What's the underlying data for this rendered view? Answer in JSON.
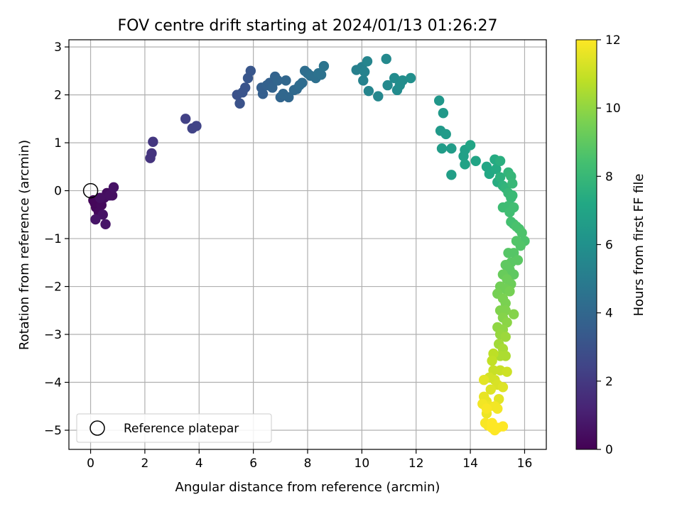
{
  "chart_data": {
    "type": "scatter",
    "title": "FOV centre drift starting at 2024/01/13 01:26:27",
    "xlabel": "Angular distance from reference (arcmin)",
    "ylabel": "Rotation from reference (arcmin)",
    "xlim": [
      -0.8,
      16.8
    ],
    "ylim": [
      -5.4,
      3.15
    ],
    "x_ticks": [
      0,
      2,
      4,
      6,
      8,
      10,
      12,
      14,
      16
    ],
    "y_ticks": [
      -5,
      -4,
      -3,
      -2,
      -1,
      0,
      1,
      2,
      3
    ],
    "x_tick_labels": [
      "0",
      "2",
      "4",
      "6",
      "8",
      "10",
      "12",
      "14",
      "16"
    ],
    "y_tick_labels": [
      "−5",
      "−4",
      "−3",
      "−2",
      "−1",
      "0",
      "1",
      "2",
      "3"
    ],
    "grid": true,
    "legend": {
      "position": "lower-left",
      "entries": [
        "Reference platepar"
      ]
    },
    "colorbar": {
      "label": "Hours from first FF file",
      "range": [
        0,
        12
      ],
      "ticks": [
        0,
        2,
        4,
        6,
        8,
        10,
        12
      ],
      "tick_labels": [
        "0",
        "2",
        "4",
        "6",
        "8",
        "10",
        "12"
      ],
      "colormap": "viridis"
    },
    "reference_point": {
      "x": 0,
      "y": 0,
      "name": "Reference platepar"
    },
    "points": [
      [
        0.1,
        -0.2,
        0.1
      ],
      [
        0.2,
        -0.35,
        0.2
      ],
      [
        0.15,
        -0.25,
        0.2
      ],
      [
        0.3,
        -0.45,
        0.3
      ],
      [
        0.4,
        -0.3,
        0.3
      ],
      [
        0.5,
        -0.15,
        0.4
      ],
      [
        0.6,
        -0.05,
        0.4
      ],
      [
        0.7,
        -0.1,
        0.5
      ],
      [
        0.8,
        -0.1,
        0.5
      ],
      [
        0.85,
        0.07,
        0.6
      ],
      [
        0.45,
        -0.5,
        0.6
      ],
      [
        0.55,
        -0.7,
        0.7
      ],
      [
        0.18,
        -0.6,
        0.7
      ],
      [
        0.35,
        -0.15,
        0.5
      ],
      [
        2.2,
        0.68,
        1.8
      ],
      [
        2.25,
        0.78,
        1.8
      ],
      [
        2.3,
        1.02,
        1.9
      ],
      [
        3.5,
        1.5,
        2.3
      ],
      [
        3.75,
        1.3,
        2.4
      ],
      [
        3.9,
        1.35,
        2.4
      ],
      [
        5.4,
        2.0,
        3.0
      ],
      [
        5.5,
        1.82,
        3.0
      ],
      [
        5.6,
        2.05,
        3.1
      ],
      [
        5.7,
        2.15,
        3.1
      ],
      [
        5.8,
        2.35,
        3.2
      ],
      [
        5.9,
        2.5,
        3.2
      ],
      [
        6.3,
        2.15,
        3.6
      ],
      [
        6.35,
        2.02,
        3.6
      ],
      [
        6.5,
        2.2,
        3.7
      ],
      [
        6.6,
        2.25,
        3.7
      ],
      [
        6.7,
        2.15,
        3.8
      ],
      [
        6.8,
        2.38,
        3.8
      ],
      [
        6.9,
        2.3,
        3.9
      ],
      [
        7.0,
        1.95,
        3.9
      ],
      [
        7.1,
        2.02,
        4.0
      ],
      [
        7.2,
        2.3,
        4.0
      ],
      [
        7.3,
        1.95,
        4.0
      ],
      [
        7.5,
        2.1,
        4.1
      ],
      [
        7.6,
        2.12,
        4.1
      ],
      [
        7.7,
        2.2,
        4.2
      ],
      [
        7.8,
        2.25,
        4.2
      ],
      [
        7.9,
        2.5,
        4.3
      ],
      [
        8.0,
        2.45,
        4.3
      ],
      [
        8.1,
        2.4,
        4.4
      ],
      [
        8.3,
        2.35,
        4.4
      ],
      [
        8.4,
        2.45,
        4.5
      ],
      [
        8.5,
        2.42,
        4.5
      ],
      [
        8.6,
        2.6,
        4.6
      ],
      [
        9.8,
        2.52,
        5.2
      ],
      [
        10.0,
        2.58,
        5.2
      ],
      [
        10.05,
        2.3,
        5.3
      ],
      [
        10.1,
        2.48,
        5.3
      ],
      [
        10.2,
        2.7,
        5.4
      ],
      [
        10.25,
        2.08,
        5.4
      ],
      [
        10.6,
        1.97,
        5.5
      ],
      [
        10.9,
        2.75,
        5.6
      ],
      [
        10.95,
        2.2,
        5.6
      ],
      [
        11.2,
        2.35,
        5.7
      ],
      [
        11.3,
        2.1,
        5.7
      ],
      [
        11.4,
        2.2,
        5.8
      ],
      [
        11.5,
        2.3,
        5.8
      ],
      [
        11.8,
        2.35,
        5.9
      ],
      [
        12.85,
        1.88,
        6.3
      ],
      [
        13.0,
        1.62,
        6.4
      ],
      [
        12.9,
        1.25,
        6.4
      ],
      [
        13.1,
        1.18,
        6.5
      ],
      [
        12.95,
        0.88,
        6.6
      ],
      [
        13.3,
        0.88,
        6.6
      ],
      [
        13.3,
        0.33,
        6.7
      ],
      [
        13.8,
        0.85,
        6.8
      ],
      [
        13.75,
        0.72,
        6.8
      ],
      [
        13.8,
        0.55,
        6.9
      ],
      [
        14.0,
        0.95,
        7.0
      ],
      [
        14.2,
        0.62,
        7.0
      ],
      [
        14.6,
        0.5,
        7.1
      ],
      [
        14.7,
        0.35,
        7.2
      ],
      [
        14.9,
        0.65,
        7.3
      ],
      [
        14.95,
        0.45,
        7.3
      ],
      [
        15.0,
        0.18,
        7.4
      ],
      [
        15.1,
        0.62,
        7.5
      ],
      [
        15.1,
        0.28,
        7.6
      ],
      [
        15.2,
        0.1,
        7.7
      ],
      [
        15.3,
        0.05,
        7.8
      ],
      [
        15.4,
        0.38,
        7.8
      ],
      [
        15.5,
        0.3,
        7.9
      ],
      [
        15.55,
        0.15,
        8.0
      ],
      [
        15.4,
        -0.05,
        8.0
      ],
      [
        15.5,
        -0.15,
        8.1
      ],
      [
        15.55,
        -0.1,
        8.1
      ],
      [
        15.2,
        -0.35,
        8.2
      ],
      [
        15.4,
        -0.32,
        8.2
      ],
      [
        15.45,
        -0.45,
        8.3
      ],
      [
        15.6,
        -0.35,
        8.3
      ],
      [
        15.5,
        -0.65,
        8.4
      ],
      [
        15.6,
        -0.7,
        8.4
      ],
      [
        15.7,
        -0.75,
        8.5
      ],
      [
        15.8,
        -0.8,
        8.5
      ],
      [
        15.9,
        -0.88,
        8.6
      ],
      [
        16.0,
        -1.05,
        8.6
      ],
      [
        15.85,
        -1.15,
        8.7
      ],
      [
        15.7,
        -1.05,
        8.7
      ],
      [
        15.4,
        -1.3,
        8.8
      ],
      [
        15.6,
        -1.3,
        8.8
      ],
      [
        15.75,
        -1.45,
        8.9
      ],
      [
        15.5,
        -1.5,
        8.9
      ],
      [
        15.3,
        -1.55,
        9.0
      ],
      [
        15.45,
        -1.65,
        9.0
      ],
      [
        15.6,
        -1.75,
        9.0
      ],
      [
        15.2,
        -1.75,
        9.2
      ],
      [
        15.35,
        -1.85,
        9.3
      ],
      [
        15.5,
        -1.95,
        9.3
      ],
      [
        15.1,
        -2.0,
        9.4
      ],
      [
        15.3,
        -2.05,
        9.4
      ],
      [
        15.45,
        -2.1,
        9.5
      ],
      [
        15.0,
        -2.15,
        9.5
      ],
      [
        15.2,
        -2.25,
        9.6
      ],
      [
        15.3,
        -2.35,
        9.6
      ],
      [
        15.1,
        -2.5,
        9.7
      ],
      [
        15.3,
        -2.5,
        9.7
      ],
      [
        15.6,
        -2.58,
        9.8
      ],
      [
        15.2,
        -2.65,
        9.8
      ],
      [
        15.35,
        -2.75,
        9.9
      ],
      [
        15.0,
        -2.85,
        10.0
      ],
      [
        15.2,
        -2.9,
        10.0
      ],
      [
        15.1,
        -3.0,
        10.1
      ],
      [
        15.3,
        -3.05,
        10.2
      ],
      [
        15.05,
        -3.2,
        10.3
      ],
      [
        15.2,
        -3.3,
        10.4
      ],
      [
        15.3,
        -3.45,
        10.5
      ],
      [
        15.1,
        -3.45,
        10.5
      ],
      [
        14.85,
        -3.4,
        10.8
      ],
      [
        14.8,
        -3.55,
        10.9
      ],
      [
        14.85,
        -3.75,
        11.0
      ],
      [
        15.1,
        -3.75,
        11.0
      ],
      [
        15.35,
        -3.78,
        11.1
      ],
      [
        14.7,
        -3.9,
        11.2
      ],
      [
        14.9,
        -3.95,
        11.2
      ],
      [
        15.0,
        -4.05,
        11.3
      ],
      [
        15.2,
        -4.1,
        11.4
      ],
      [
        14.75,
        -4.15,
        11.4
      ],
      [
        15.05,
        -4.35,
        11.5
      ],
      [
        14.5,
        -4.3,
        11.6
      ],
      [
        14.6,
        -4.4,
        11.6
      ],
      [
        14.7,
        -4.5,
        11.7
      ],
      [
        14.6,
        -4.65,
        11.7
      ],
      [
        14.9,
        -4.5,
        11.8
      ],
      [
        15.0,
        -4.55,
        11.8
      ],
      [
        14.55,
        -4.85,
        11.9
      ],
      [
        14.65,
        -4.9,
        11.9
      ],
      [
        14.8,
        -4.95,
        12.0
      ],
      [
        15.0,
        -4.95,
        12.0
      ],
      [
        15.2,
        -4.92,
        12.0
      ],
      [
        14.9,
        -5.0,
        12.0
      ],
      [
        14.45,
        -4.45,
        11.8
      ],
      [
        14.5,
        -3.95,
        11.5
      ],
      [
        14.6,
        -4.55,
        11.9
      ],
      [
        14.8,
        -4.85,
        12.0
      ]
    ]
  }
}
